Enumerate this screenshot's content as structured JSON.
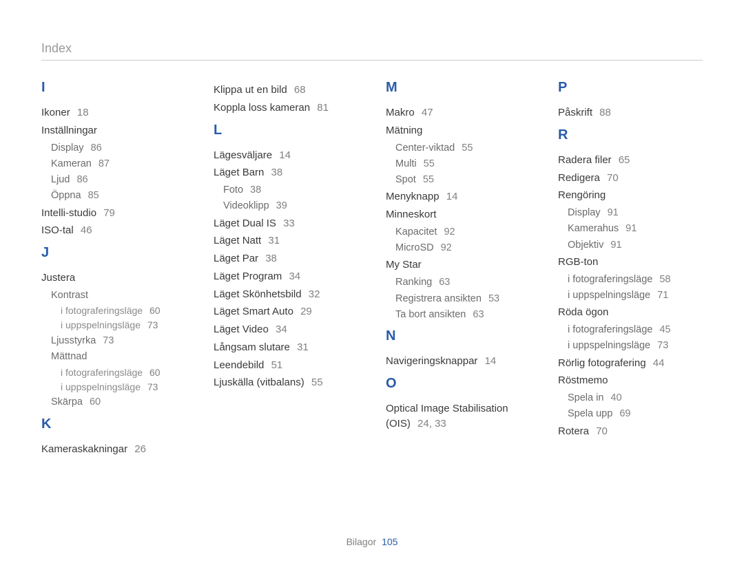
{
  "page_title": "Index",
  "footer": {
    "label": "Bilagor",
    "page": "105"
  },
  "colors": {
    "accent": "#2a5ba8",
    "title_gray": "#9a9a9a",
    "text": "#3a3a3a",
    "muted": "#6b6b6b",
    "muted2": "#8a8a8a",
    "page_num": "#808080",
    "rule": "#cccccc",
    "background": "#ffffff"
  },
  "columns": [
    [
      {
        "type": "letter",
        "text": "I"
      },
      {
        "type": "entry",
        "level": 0,
        "text": "Ikoner",
        "page": "18"
      },
      {
        "type": "entry",
        "level": 0,
        "text": "Inställningar"
      },
      {
        "type": "entry",
        "level": 1,
        "text": "Display",
        "page": "86"
      },
      {
        "type": "entry",
        "level": 1,
        "text": "Kameran",
        "page": "87"
      },
      {
        "type": "entry",
        "level": 1,
        "text": "Ljud",
        "page": "86"
      },
      {
        "type": "entry",
        "level": 1,
        "text": "Öppna",
        "page": "85"
      },
      {
        "type": "entry",
        "level": 0,
        "text": "Intelli-studio",
        "page": "79"
      },
      {
        "type": "entry",
        "level": 0,
        "text": "ISO-tal",
        "page": "46"
      },
      {
        "type": "letter",
        "text": "J"
      },
      {
        "type": "entry",
        "level": 0,
        "text": "Justera"
      },
      {
        "type": "entry",
        "level": 1,
        "text": "Kontrast"
      },
      {
        "type": "entry",
        "level": 2,
        "text": "i fotograferingsläge",
        "page": "60"
      },
      {
        "type": "entry",
        "level": 2,
        "text": "i uppspelningsläge",
        "page": "73"
      },
      {
        "type": "entry",
        "level": 1,
        "text": "Ljusstyrka",
        "page": "73"
      },
      {
        "type": "entry",
        "level": 1,
        "text": "Mättnad"
      },
      {
        "type": "entry",
        "level": 2,
        "text": "i fotograferingsläge",
        "page": "60"
      },
      {
        "type": "entry",
        "level": 2,
        "text": "i uppspelningsläge",
        "page": "73"
      },
      {
        "type": "entry",
        "level": 1,
        "text": "Skärpa",
        "page": "60"
      },
      {
        "type": "letter",
        "text": "K"
      },
      {
        "type": "entry",
        "level": 0,
        "text": "Kameraskakningar",
        "page": "26"
      }
    ],
    [
      {
        "type": "entry",
        "level": 0,
        "text": "Klippa ut en bild",
        "page": "68"
      },
      {
        "type": "entry",
        "level": 0,
        "text": "Koppla loss kameran",
        "page": "81"
      },
      {
        "type": "letter",
        "text": "L"
      },
      {
        "type": "entry",
        "level": 0,
        "text": "Lägesväljare",
        "page": "14"
      },
      {
        "type": "entry",
        "level": 0,
        "text": "Läget Barn",
        "page": "38"
      },
      {
        "type": "entry",
        "level": 1,
        "text": "Foto",
        "page": "38"
      },
      {
        "type": "entry",
        "level": 1,
        "text": "Videoklipp",
        "page": "39"
      },
      {
        "type": "entry",
        "level": 0,
        "text": "Läget Dual IS",
        "page": "33"
      },
      {
        "type": "entry",
        "level": 0,
        "text": "Läget Natt",
        "page": "31"
      },
      {
        "type": "entry",
        "level": 0,
        "text": "Läget Par",
        "page": "38"
      },
      {
        "type": "entry",
        "level": 0,
        "text": "Läget Program",
        "page": "34"
      },
      {
        "type": "entry",
        "level": 0,
        "text": "Läget Skönhetsbild",
        "page": "32"
      },
      {
        "type": "entry",
        "level": 0,
        "text": "Läget Smart Auto",
        "page": "29"
      },
      {
        "type": "entry",
        "level": 0,
        "text": "Läget Video",
        "page": "34"
      },
      {
        "type": "entry",
        "level": 0,
        "text": "Långsam slutare",
        "page": "31"
      },
      {
        "type": "entry",
        "level": 0,
        "text": "Leendebild",
        "page": "51"
      },
      {
        "type": "entry",
        "level": 0,
        "text": "Ljuskälla (vitbalans)",
        "page": "55"
      }
    ],
    [
      {
        "type": "letter",
        "text": "M"
      },
      {
        "type": "entry",
        "level": 0,
        "text": "Makro",
        "page": "47"
      },
      {
        "type": "entry",
        "level": 0,
        "text": "Mätning"
      },
      {
        "type": "entry",
        "level": 1,
        "text": "Center-viktad",
        "page": "55"
      },
      {
        "type": "entry",
        "level": 1,
        "text": "Multi",
        "page": "55"
      },
      {
        "type": "entry",
        "level": 1,
        "text": "Spot",
        "page": "55"
      },
      {
        "type": "entry",
        "level": 0,
        "text": "Menyknapp",
        "page": "14"
      },
      {
        "type": "entry",
        "level": 0,
        "text": "Minneskort"
      },
      {
        "type": "entry",
        "level": 1,
        "text": "Kapacitet",
        "page": "92"
      },
      {
        "type": "entry",
        "level": 1,
        "text": "MicroSD",
        "page": "92"
      },
      {
        "type": "entry",
        "level": 0,
        "text": "My Star"
      },
      {
        "type": "entry",
        "level": 1,
        "text": "Ranking",
        "page": "63"
      },
      {
        "type": "entry",
        "level": 1,
        "text": "Registrera ansikten",
        "page": "53"
      },
      {
        "type": "entry",
        "level": 1,
        "text": "Ta bort ansikten",
        "page": "63"
      },
      {
        "type": "letter",
        "text": "N"
      },
      {
        "type": "entry",
        "level": 0,
        "text": "Navigeringsknappar",
        "page": "14"
      },
      {
        "type": "letter",
        "text": "O"
      },
      {
        "type": "entry",
        "level": 0,
        "text": "Optical Image Stabilisation (OIS)",
        "page": "24, 33"
      }
    ],
    [
      {
        "type": "letter",
        "text": "P"
      },
      {
        "type": "entry",
        "level": 0,
        "text": "Påskrift",
        "page": "88"
      },
      {
        "type": "letter",
        "text": "R"
      },
      {
        "type": "entry",
        "level": 0,
        "text": "Radera filer",
        "page": "65"
      },
      {
        "type": "entry",
        "level": 0,
        "text": "Redigera",
        "page": "70"
      },
      {
        "type": "entry",
        "level": 0,
        "text": "Rengöring"
      },
      {
        "type": "entry",
        "level": 1,
        "text": "Display",
        "page": "91"
      },
      {
        "type": "entry",
        "level": 1,
        "text": "Kamerahus",
        "page": "91"
      },
      {
        "type": "entry",
        "level": 1,
        "text": "Objektiv",
        "page": "91"
      },
      {
        "type": "entry",
        "level": 0,
        "text": "RGB-ton"
      },
      {
        "type": "entry",
        "level": 1,
        "text": "i fotograferingsläge",
        "page": "58"
      },
      {
        "type": "entry",
        "level": 1,
        "text": "i uppspelningsläge",
        "page": "71"
      },
      {
        "type": "entry",
        "level": 0,
        "text": "Röda ögon"
      },
      {
        "type": "entry",
        "level": 1,
        "text": "i fotograferingsläge",
        "page": "45"
      },
      {
        "type": "entry",
        "level": 1,
        "text": "i uppspelningsläge",
        "page": "73"
      },
      {
        "type": "entry",
        "level": 0,
        "text": "Rörlig fotografering",
        "page": "44"
      },
      {
        "type": "entry",
        "level": 0,
        "text": "Röstmemo"
      },
      {
        "type": "entry",
        "level": 1,
        "text": "Spela in",
        "page": "40"
      },
      {
        "type": "entry",
        "level": 1,
        "text": "Spela upp",
        "page": "69"
      },
      {
        "type": "entry",
        "level": 0,
        "text": "Rotera",
        "page": "70"
      }
    ]
  ]
}
